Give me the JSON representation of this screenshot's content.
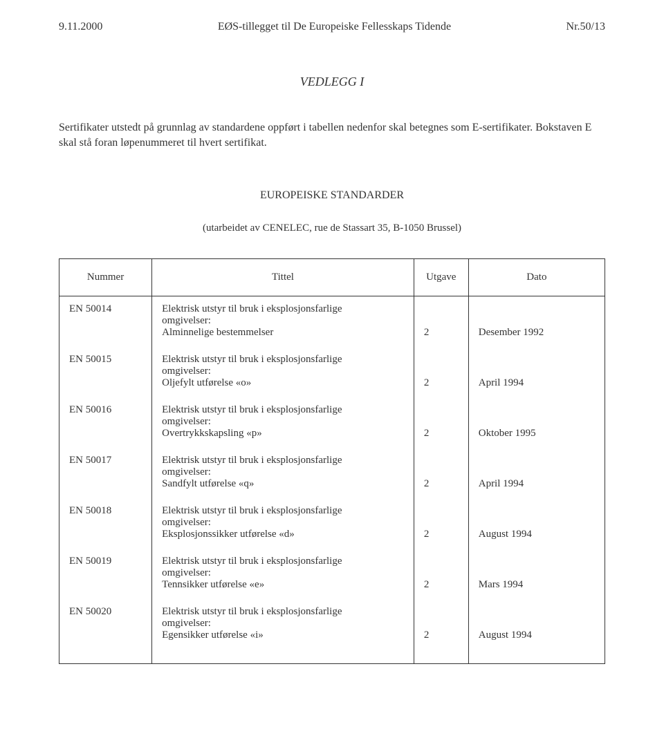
{
  "header": {
    "left": "9.11.2000",
    "center": "EØS-tillegget til De Europeiske Fellesskaps Tidende",
    "right": "Nr.50/13"
  },
  "annex_title": "VEDLEGG I",
  "intro": "Sertifikater utstedt på grunnlag av standardene oppført i tabellen nedenfor skal betegnes som E-sertifikater. Bokstaven E skal stå foran løpenummeret til hvert sertifikat.",
  "european_standards_heading": "EUROPEISKE STANDARDER",
  "european_standards_sub": "(utarbeidet av CENELEC, rue de Stassart 35, B-1050 Brussel)",
  "table": {
    "columns": [
      "Nummer",
      "Tittel",
      "Utgave",
      "Dato"
    ],
    "rows": [
      {
        "number": "EN 50014",
        "title_lines": [
          "Elektrisk utstyr til bruk i eksplosjonsfarlige",
          "omgivelser:",
          "Alminnelige bestemmelser"
        ],
        "edition": "2",
        "date": "Desember 1992"
      },
      {
        "number": "EN 50015",
        "title_lines": [
          "Elektrisk utstyr til bruk i eksplosjonsfarlige",
          "omgivelser:",
          "Oljefylt utførelse «o»"
        ],
        "edition": "2",
        "date": "April 1994"
      },
      {
        "number": "EN 50016",
        "title_lines": [
          "Elektrisk utstyr til bruk i eksplosjonsfarlige",
          "omgivelser:",
          "Overtrykkskapsling «p»"
        ],
        "edition": "2",
        "date": "Oktober 1995"
      },
      {
        "number": "EN 50017",
        "title_lines": [
          "Elektrisk utstyr til bruk i eksplosjonsfarlige",
          "omgivelser:",
          "Sandfylt utførelse «q»"
        ],
        "edition": "2",
        "date": "April 1994"
      },
      {
        "number": "EN 50018",
        "title_lines": [
          "Elektrisk utstyr til bruk i eksplosjonsfarlige",
          "omgivelser:",
          "Eksplosjonssikker utførelse «d»"
        ],
        "edition": "2",
        "date": "August 1994"
      },
      {
        "number": "EN 50019",
        "title_lines": [
          "Elektrisk utstyr til bruk i eksplosjonsfarlige",
          "omgivelser:",
          "Tennsikker utførelse «e»"
        ],
        "edition": "2",
        "date": "Mars 1994"
      },
      {
        "number": "EN 50020",
        "title_lines": [
          "Elektrisk utstyr til bruk i eksplosjonsfarlige",
          "omgivelser:",
          "Egensikker utførelse «i»"
        ],
        "edition": "2",
        "date": "August 1994"
      }
    ]
  }
}
